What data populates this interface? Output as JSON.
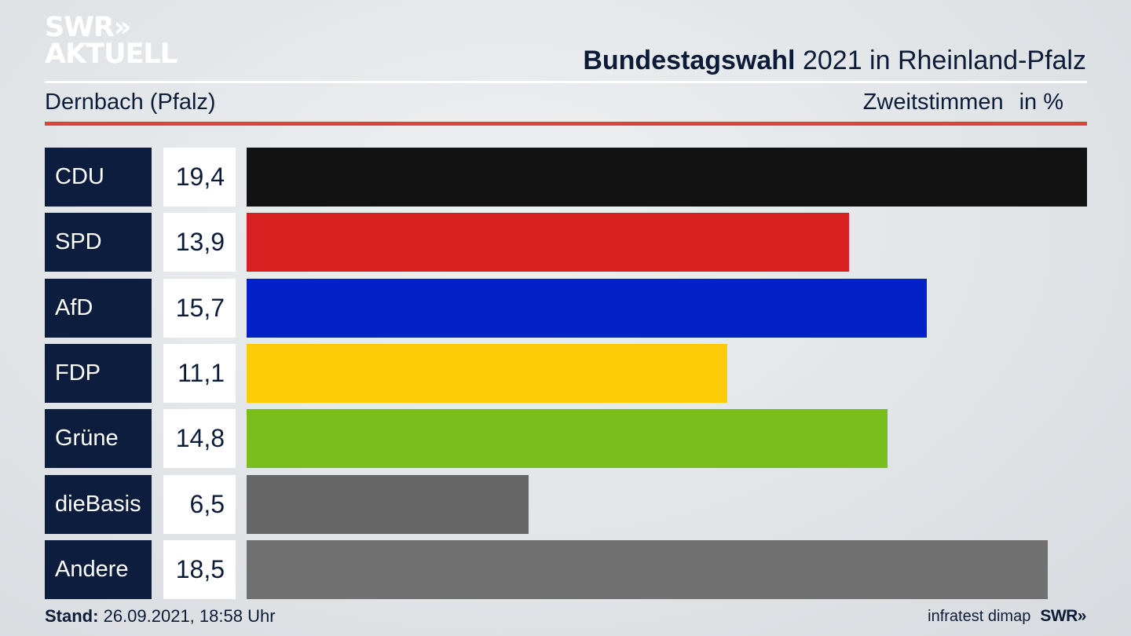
{
  "logo": {
    "line1": "SWR»",
    "line2": "AKTUELL"
  },
  "header": {
    "title_strong": "Bundestagswahl",
    "title_rest": "2021 in Rheinland-Pfalz",
    "location": "Dernbach (Pfalz)",
    "measure": "Zweitstimmen",
    "unit": "in %"
  },
  "chart_data": {
    "type": "bar",
    "orientation": "horizontal",
    "categories": [
      "CDU",
      "SPD",
      "AfD",
      "FDP",
      "Grüne",
      "dieBasis",
      "Andere"
    ],
    "values": [
      19.4,
      13.9,
      15.7,
      11.1,
      14.8,
      6.5,
      18.5
    ],
    "value_labels": [
      "19,4",
      "13,9",
      "15,7",
      "11,1",
      "14,8",
      "6,5",
      "18,5"
    ],
    "colors": [
      "#121212",
      "#d82020",
      "#0221c9",
      "#fdcb07",
      "#79be1d",
      "#666666",
      "#707071"
    ],
    "title": "Bundestagswahl 2021 in Rheinland-Pfalz",
    "xlabel": "",
    "ylabel": "",
    "unit": "in %",
    "xlim": [
      0,
      19.4
    ],
    "grid": false
  },
  "footer": {
    "stand_label": "Stand:",
    "stand_value": "26.09.2021, 18:58 Uhr",
    "source": "infratest dimap",
    "brand": "SWR»"
  }
}
